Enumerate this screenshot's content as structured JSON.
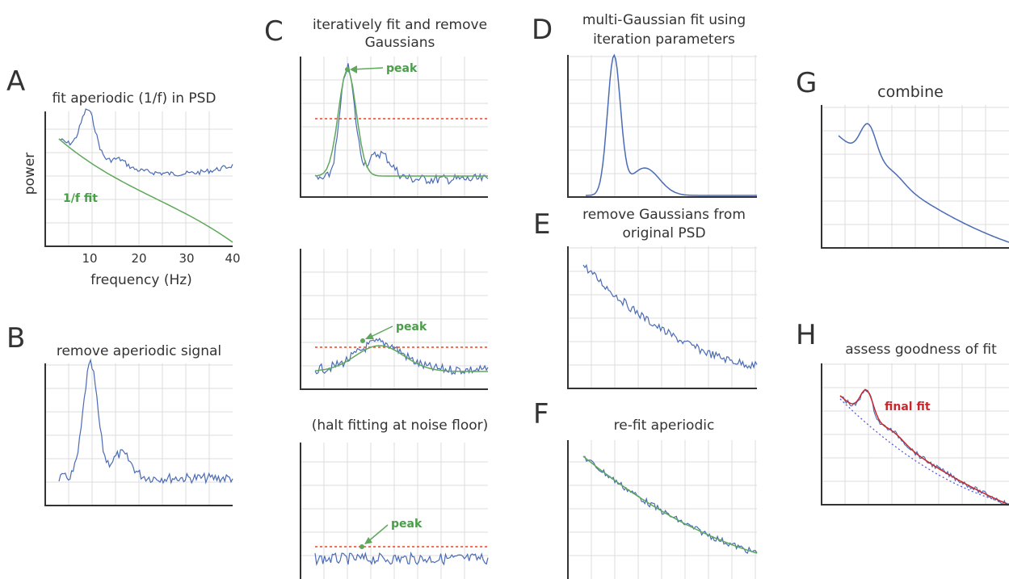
{
  "panels": {
    "A": {
      "letter": "A",
      "title": "fit aperiodic (1/f) in PSD",
      "ylabel": "power",
      "xlabel": "frequency (Hz)",
      "ticks": [
        "10",
        "20",
        "30",
        "40"
      ],
      "fit_label": "1/f fit"
    },
    "B": {
      "letter": "B",
      "title": "remove aperiodic signal"
    },
    "C": {
      "letter": "C",
      "title_line1": "iteratively fit and remove",
      "title_line2": "Gaussians",
      "sub3_title": "(halt fitting at noise floor)",
      "peak_label": "peak"
    },
    "D": {
      "letter": "D",
      "title_line1": "multi-Gaussian fit using",
      "title_line2": "iteration parameters"
    },
    "E": {
      "letter": "E",
      "title_line1": "remove Gaussians from",
      "title_line2": "original PSD"
    },
    "F": {
      "letter": "F",
      "title": "re-fit aperiodic"
    },
    "G": {
      "letter": "G",
      "title": "combine"
    },
    "H": {
      "letter": "H",
      "title": "assess goodness of fit",
      "fit_label": "final fit"
    }
  },
  "colors": {
    "psd": "#4a6bb5",
    "fit": "#5fa85a",
    "threshold": "#e0462f",
    "final": "#c8282d",
    "aperiodic_dotted": "#5a5ad8",
    "grid": "#dcdcdc",
    "axis": "#333333",
    "peak_text": "#4a9e4a"
  }
}
